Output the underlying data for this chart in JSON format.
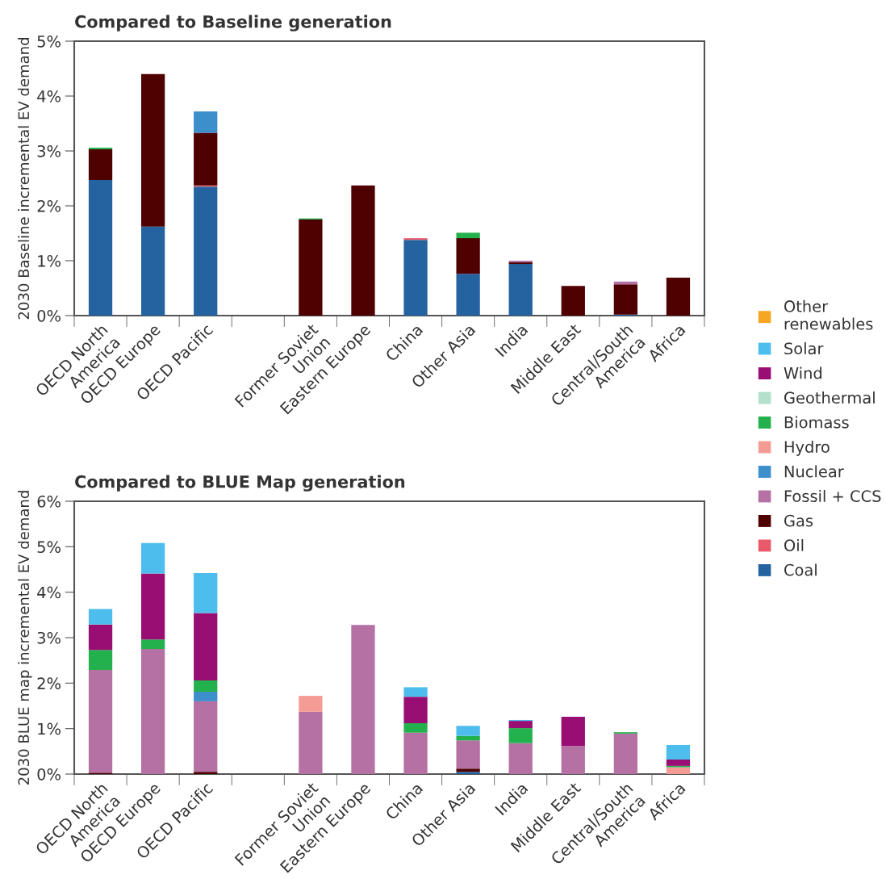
{
  "chart_data": [
    {
      "type": "bar",
      "stacked": true,
      "title": "Compared to Baseline generation",
      "ylabel": "2030 Baseline incremental EV demand",
      "categories": [
        "OECD North\nAmerica",
        "OECD Europe",
        "OECD Pacific",
        null,
        "Former Soviet\nUnion",
        "Eastern Europe",
        "China",
        "Other Asia",
        "India",
        "Middle East",
        "Central/South\nAmerica",
        "Africa"
      ],
      "ylim": [
        0,
        5
      ],
      "yticks": [
        {
          "value": 0,
          "label": "0%"
        },
        {
          "value": 1,
          "label": "1%"
        },
        {
          "value": 2,
          "label": "2%"
        },
        {
          "value": 3,
          "label": "3%"
        },
        {
          "value": 4,
          "label": "4%"
        },
        {
          "value": 5,
          "label": "5%"
        }
      ],
      "grid": false,
      "legend": "right",
      "series": [
        {
          "name": "Coal",
          "color": "#2563a0",
          "values": [
            2.47,
            1.62,
            2.35,
            null,
            null,
            null,
            1.38,
            0.76,
            0.94,
            null,
            0.02,
            null
          ]
        },
        {
          "name": "Oil",
          "color": "#e85a6a",
          "values": [
            null,
            null,
            0.02,
            null,
            null,
            null,
            0.03,
            null,
            null,
            null,
            null,
            null
          ]
        },
        {
          "name": "Gas",
          "color": "#4f0000",
          "values": [
            0.56,
            2.78,
            0.96,
            null,
            1.75,
            2.37,
            null,
            0.65,
            0.03,
            0.54,
            0.55,
            0.69
          ]
        },
        {
          "name": "Fossil + CCS",
          "color": "#b571a3",
          "values": [
            null,
            null,
            null,
            null,
            null,
            null,
            null,
            null,
            0.03,
            null,
            0.05,
            null
          ]
        },
        {
          "name": "Nuclear",
          "color": "#3d8fcc",
          "values": [
            null,
            null,
            0.39,
            null,
            null,
            null,
            null,
            null,
            null,
            null,
            null,
            null
          ]
        },
        {
          "name": "Hydro",
          "color": "#f49b96",
          "values": [
            null,
            null,
            null,
            null,
            null,
            null,
            null,
            null,
            null,
            null,
            null,
            null
          ]
        },
        {
          "name": "Biomass",
          "color": "#23b14d",
          "values": [
            0.03,
            null,
            null,
            null,
            0.02,
            null,
            null,
            0.1,
            null,
            null,
            null,
            null
          ]
        },
        {
          "name": "Geothermal",
          "color": "#b3e0cc",
          "values": [
            null,
            null,
            null,
            null,
            null,
            null,
            null,
            null,
            null,
            null,
            null,
            null
          ]
        },
        {
          "name": "Wind",
          "color": "#990e73",
          "values": [
            null,
            null,
            null,
            null,
            null,
            null,
            null,
            null,
            null,
            null,
            null,
            null
          ]
        },
        {
          "name": "Solar",
          "color": "#4cbdec",
          "values": [
            null,
            null,
            null,
            null,
            null,
            null,
            null,
            null,
            null,
            null,
            null,
            null
          ]
        },
        {
          "name": "Other\nrenewables",
          "color": "#f5a623",
          "values": [
            null,
            null,
            null,
            null,
            null,
            null,
            null,
            null,
            null,
            null,
            null,
            null
          ]
        }
      ]
    },
    {
      "type": "bar",
      "stacked": true,
      "title": "Compared to BLUE Map generation",
      "ylabel": "2030 BLUE map incremental EV demand",
      "categories": [
        "OECD North\nAmerica",
        "OECD Europe",
        "OECD Pacific",
        null,
        "Former Soviet\nUnion",
        "Eastern Europe",
        "China",
        "Other Asia",
        "India",
        "Middle East",
        "Central/South\nAmerica",
        "Africa"
      ],
      "ylim": [
        0,
        6
      ],
      "yticks": [
        {
          "value": 0,
          "label": "0%"
        },
        {
          "value": 1,
          "label": "1%"
        },
        {
          "value": 2,
          "label": "2%"
        },
        {
          "value": 3,
          "label": "3%"
        },
        {
          "value": 4,
          "label": "4%"
        },
        {
          "value": 5,
          "label": "5%"
        },
        {
          "value": 6,
          "label": "6%"
        }
      ],
      "grid": false,
      "series": [
        {
          "color": "#2563a0",
          "values": [
            null,
            null,
            null,
            null,
            null,
            null,
            null,
            0.05,
            null,
            null,
            null,
            null
          ]
        },
        {
          "color": "#e85a6a",
          "values": [
            null,
            null,
            null,
            null,
            null,
            null,
            null,
            null,
            null,
            null,
            null,
            null
          ]
        },
        {
          "color": "#4f0000",
          "values": [
            0.03,
            null,
            0.05,
            null,
            null,
            null,
            null,
            0.07,
            null,
            null,
            null,
            null
          ]
        },
        {
          "color": "#b571a3",
          "values": [
            2.26,
            2.75,
            1.55,
            null,
            1.37,
            3.28,
            0.91,
            0.62,
            0.68,
            0.62,
            0.89,
            null
          ]
        },
        {
          "color": "#3d8fcc",
          "values": [
            null,
            null,
            0.21,
            null,
            null,
            null,
            null,
            null,
            null,
            null,
            null,
            null
          ]
        },
        {
          "color": "#f49b96",
          "values": [
            null,
            null,
            null,
            null,
            0.35,
            null,
            null,
            null,
            null,
            null,
            null,
            0.15
          ]
        },
        {
          "color": "#23b14d",
          "values": [
            0.44,
            0.21,
            0.25,
            null,
            null,
            null,
            0.21,
            0.1,
            0.33,
            null,
            0.03,
            0.03
          ]
        },
        {
          "color": "#b3e0cc",
          "values": [
            null,
            null,
            null,
            null,
            null,
            null,
            null,
            null,
            null,
            null,
            null,
            null
          ]
        },
        {
          "color": "#990e73",
          "values": [
            0.56,
            1.45,
            1.48,
            null,
            null,
            null,
            0.58,
            null,
            0.16,
            0.64,
            null,
            0.14
          ]
        },
        {
          "color": "#4cbdec",
          "values": [
            0.34,
            0.67,
            0.88,
            null,
            null,
            null,
            0.21,
            0.22,
            0.02,
            null,
            null,
            0.32
          ]
        },
        {
          "color": "#f5a623",
          "values": [
            null,
            null,
            null,
            null,
            null,
            null,
            null,
            null,
            null,
            null,
            null,
            null
          ]
        }
      ]
    }
  ]
}
